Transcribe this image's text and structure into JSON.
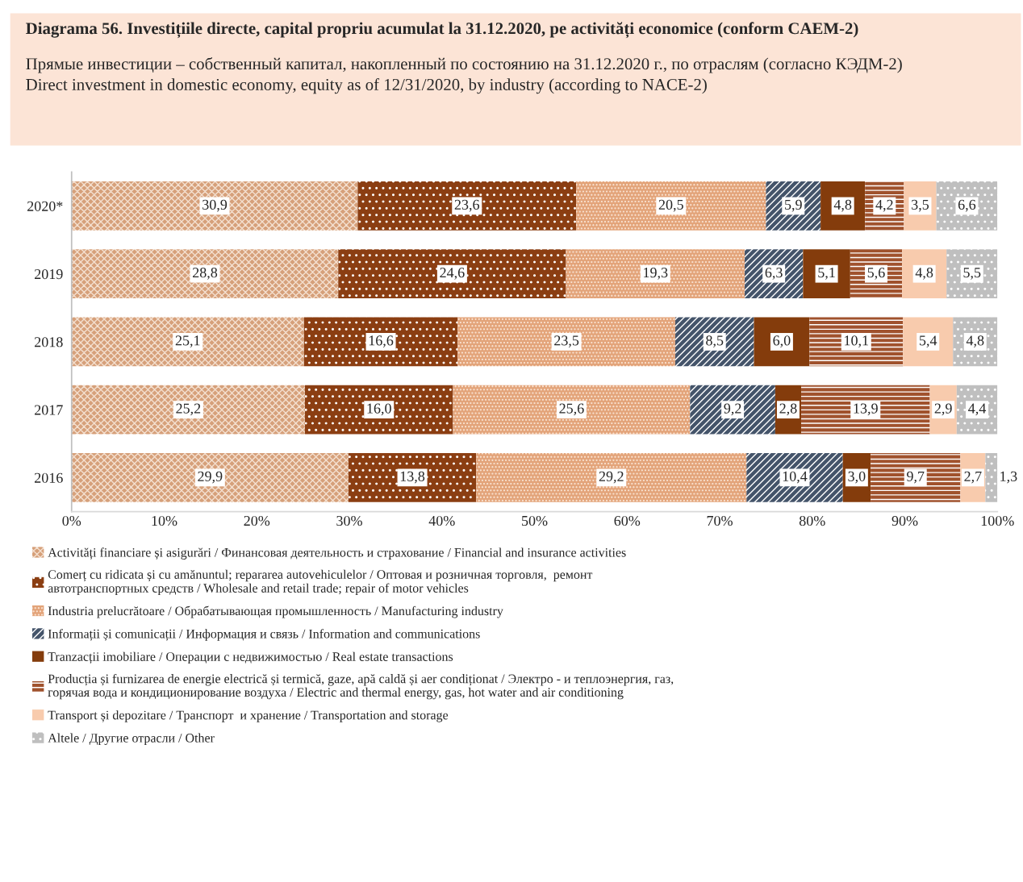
{
  "chart_data": {
    "type": "bar",
    "orientation": "horizontal",
    "stacked": true,
    "title": "Diagrama 56. Investițiile directe, capital propriu acumulat la 31.12.2020, pe activități economice (conform CAEM-2)",
    "subtitle": "Прямые инвестиции – собственный капитал, накопленный по состоянию на 31.12.2020 г., по отраслям (согласно КЭДМ-2)\nDirect investment in domestic economy, equity as of 12/31/2020, by industry (according to NACE-2)",
    "categories": [
      "2020*",
      "2019",
      "2018",
      "2017",
      "2016"
    ],
    "xlim": [
      0,
      100
    ],
    "xticks": [
      {
        "value": 0,
        "label": "0%"
      },
      {
        "value": 10,
        "label": "10%"
      },
      {
        "value": 20,
        "label": "20%"
      },
      {
        "value": 30,
        "label": "30%"
      },
      {
        "value": 40,
        "label": "40%"
      },
      {
        "value": 50,
        "label": "50%"
      },
      {
        "value": 60,
        "label": "60%"
      },
      {
        "value": 70,
        "label": "70%"
      },
      {
        "value": 80,
        "label": "80%"
      },
      {
        "value": 90,
        "label": "90%"
      },
      {
        "value": 100,
        "label": "100%"
      }
    ],
    "grid": false,
    "legend": "bottom",
    "series": [
      {
        "name": "Activități financiare și asigurări / Финансовая деятельность и страхование / Financial and insurance activities",
        "color": "#d6a07a",
        "values": [
          30.9,
          28.8,
          25.1,
          25.2,
          29.9
        ],
        "value_labels": [
          "30,9",
          "28,8",
          "25,1",
          "25,2",
          "29,9"
        ]
      },
      {
        "name": "Comerț cu ridicata și cu amănuntul; repararea autovehiculelor / Оптовая и розничная торговля,  ремонт\nавтотранспортных средств / Wholesale and retail trade; repair of motor vehicles",
        "color": "#8b3e12",
        "values": [
          23.6,
          24.6,
          16.6,
          16.0,
          13.8
        ],
        "value_labels": [
          "23,6",
          "24,6",
          "16,6",
          "16,0",
          "13,8"
        ]
      },
      {
        "name": "Industria prelucrătoare / Обрабатывающая промышленность / Manufacturing industry",
        "color": "#e3a47a",
        "values": [
          20.5,
          19.3,
          23.5,
          25.6,
          29.2
        ],
        "value_labels": [
          "20,5",
          "19,3",
          "23,5",
          "25,6",
          "29,2"
        ]
      },
      {
        "name": "Informații și comunicații / Информация и связь / Information and communications",
        "color": "#44546a",
        "values": [
          5.9,
          6.3,
          8.5,
          9.2,
          10.4
        ],
        "value_labels": [
          "5,9",
          "6,3",
          "8,5",
          "9,2",
          "10,4"
        ]
      },
      {
        "name": "Tranzacții imobiliare / Операции с недвижимостью / Real estate transactions",
        "color": "#843c0c",
        "values": [
          4.8,
          5.1,
          6.0,
          2.8,
          3.0
        ],
        "value_labels": [
          "4,8",
          "5,1",
          "6,0",
          "2,8",
          "3,0"
        ]
      },
      {
        "name": "Producția și furnizarea de energie electrică și termică, gaze, apă caldă și aer condiționat / Электро - и теплоэнергия, газ,\nгорячая вода и кондиционирование воздуха / Electric and thermal energy, gas, hot water and air conditioning",
        "color": "#a0522d",
        "values": [
          4.2,
          5.6,
          10.1,
          13.9,
          9.7
        ],
        "value_labels": [
          "4,2",
          "5,6",
          "10,1",
          "13,9",
          "9,7"
        ]
      },
      {
        "name": "Transport și depozitare / Транспорт  и хранение / Transportation and storage",
        "color": "#f8cbad",
        "values": [
          3.5,
          4.8,
          5.4,
          2.9,
          2.7
        ],
        "value_labels": [
          "3,5",
          "4,8",
          "5,4",
          "2,9",
          "2,7"
        ]
      },
      {
        "name": "Altele / Другие отрасли / Other",
        "color": "#bfbfbf",
        "values": [
          6.6,
          5.5,
          4.8,
          4.4,
          1.3
        ],
        "value_labels": [
          "6,6",
          "5,5",
          "4,8",
          "4,4",
          "1,3"
        ]
      }
    ]
  }
}
